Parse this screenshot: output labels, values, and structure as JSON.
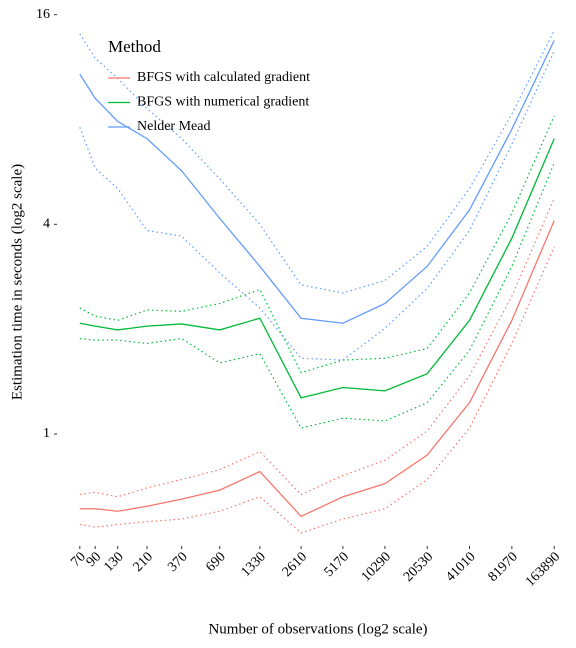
{
  "chart_data": {
    "type": "line",
    "x_label": "Number of observations (log2 scale)",
    "y_label": "Estimation time in seconds (log2 scale)",
    "legend_title": "Method",
    "legend_position": "top-left",
    "x_log_base": 2,
    "y_log_base": 2,
    "grid": false,
    "x": [
      70,
      90,
      130,
      210,
      370,
      690,
      1330,
      2610,
      5170,
      10290,
      20530,
      41010,
      81970,
      163890
    ],
    "xlim": [
      49,
      234000
    ],
    "xticks": [
      70,
      90,
      130,
      210,
      370,
      690,
      1330,
      2610,
      5170,
      10290,
      20530,
      41010,
      81970,
      163890
    ],
    "ylim": [
      0.48,
      16.5
    ],
    "yticks": [
      1,
      4,
      16
    ],
    "series": [
      {
        "name": "BFGS with calculated gradient",
        "color": "#f8766d",
        "values": [
          0.61,
          0.61,
          0.6,
          0.62,
          0.65,
          0.69,
          0.78,
          0.58,
          0.66,
          0.72,
          0.87,
          1.23,
          2.12,
          4.1
        ],
        "upper": [
          0.67,
          0.68,
          0.66,
          0.7,
          0.74,
          0.79,
          0.89,
          0.67,
          0.76,
          0.84,
          1.02,
          1.47,
          2.49,
          4.75
        ],
        "lower": [
          0.55,
          0.54,
          0.55,
          0.56,
          0.57,
          0.6,
          0.66,
          0.52,
          0.57,
          0.61,
          0.74,
          1.04,
          1.82,
          3.45
        ]
      },
      {
        "name": "BFGS with numerical gradient",
        "color": "#00ba38",
        "values": [
          2.08,
          2.04,
          1.99,
          2.04,
          2.07,
          1.99,
          2.15,
          1.27,
          1.36,
          1.33,
          1.49,
          2.12,
          3.65,
          7.05
        ],
        "upper": [
          2.3,
          2.18,
          2.12,
          2.27,
          2.25,
          2.37,
          2.6,
          1.5,
          1.63,
          1.65,
          1.76,
          2.54,
          4.3,
          8.2
        ],
        "lower": [
          1.88,
          1.86,
          1.86,
          1.82,
          1.88,
          1.6,
          1.7,
          1.04,
          1.11,
          1.09,
          1.23,
          1.74,
          3.03,
          6.0
        ]
      },
      {
        "name": "Nelder Mead",
        "color": "#619cff",
        "values": [
          10.8,
          9.2,
          7.9,
          7.05,
          5.7,
          4.16,
          3.03,
          2.15,
          2.08,
          2.37,
          3.03,
          4.4,
          7.5,
          13.5
        ],
        "upper": [
          14.1,
          12,
          10.5,
          8.6,
          7.05,
          5.4,
          4.0,
          2.68,
          2.54,
          2.76,
          3.46,
          5.07,
          8.3,
          14.4
        ],
        "lower": [
          7.6,
          5.8,
          5.07,
          3.84,
          3.7,
          2.9,
          2.3,
          1.65,
          1.63,
          2.01,
          2.62,
          3.84,
          6.8,
          12.6
        ]
      }
    ]
  }
}
